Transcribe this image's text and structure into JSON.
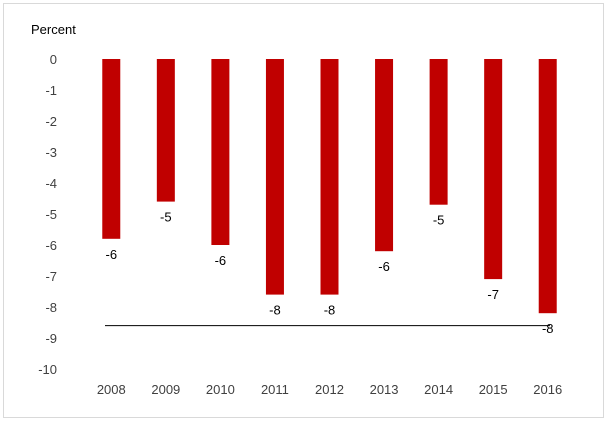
{
  "chart_data": {
    "type": "bar",
    "ylabel": "Percent",
    "categories": [
      "2008",
      "2009",
      "2010",
      "2011",
      "2012",
      "2013",
      "2014",
      "2015",
      "2016"
    ],
    "values": [
      -5.8,
      -4.6,
      -6.0,
      -7.6,
      -7.6,
      -6.2,
      -4.7,
      -7.1,
      -8.2
    ],
    "data_labels": [
      "-6",
      "-5",
      "-6",
      "-8",
      "-8",
      "-6",
      "-5",
      "-7",
      "-8"
    ],
    "reference_line": -8.6,
    "ylim": [
      -10,
      0
    ],
    "yticks": [
      "0",
      "-1",
      "-2",
      "-3",
      "-4",
      "-5",
      "-6",
      "-7",
      "-8",
      "-9",
      "-10"
    ],
    "grid": false,
    "bar_color": "#c00000"
  }
}
